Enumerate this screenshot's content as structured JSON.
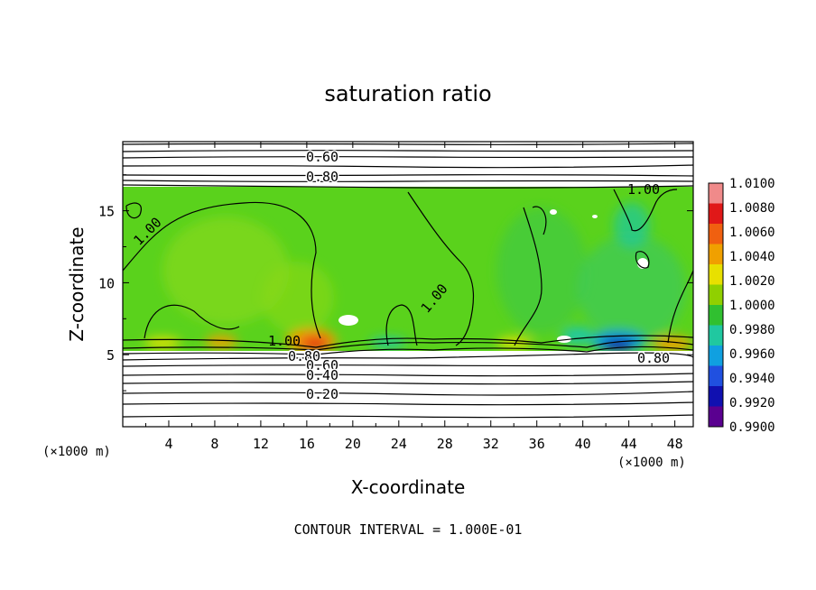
{
  "chart_data": {
    "type": "heatmap",
    "title": "saturation ratio",
    "xlabel": "X-coordinate",
    "ylabel": "Z-coordinate",
    "x_unit_label": "(×1000 m)",
    "z_unit_label": "(×1000 m)",
    "xlim": [
      0,
      49.6
    ],
    "ylim": [
      0,
      19.8
    ],
    "x_ticks": [
      "4",
      "8",
      "12",
      "16",
      "20",
      "24",
      "28",
      "32",
      "36",
      "40",
      "44",
      "48"
    ],
    "y_ticks": [
      "5",
      "10",
      "15"
    ],
    "footer": "CONTOUR INTERVAL = 1.000E-01",
    "colorbar": {
      "labels": [
        "1.0100",
        "1.0080",
        "1.0060",
        "1.0040",
        "1.0020",
        "1.0000",
        "0.9980",
        "0.9960",
        "0.9940",
        "0.9920",
        "0.9900"
      ],
      "min": 0.99,
      "max": 1.01,
      "colors": [
        "#f08a8a",
        "#e01818",
        "#f06010",
        "#f0a000",
        "#e8e000",
        "#90d000",
        "#30c030",
        "#20c8a0",
        "#10a0e0",
        "#2050e0",
        "#1010b0",
        "#5a0090"
      ]
    },
    "contour_labels": [
      {
        "text": "0.60",
        "x": 17.5,
        "z": 18.5
      },
      {
        "text": "0.80",
        "x": 17.5,
        "z": 17.2
      },
      {
        "text": "1.00",
        "x": 45.0,
        "z": 16.5
      },
      {
        "text": "1.00",
        "x": 2.8,
        "z": 13.3
      },
      {
        "text": "1.00",
        "x": 27.5,
        "z": 8.8
      },
      {
        "text": "1.00",
        "x": 14.0,
        "z": 6.1
      },
      {
        "text": "0.80",
        "x": 15.6,
        "z": 4.9
      },
      {
        "text": "0.60",
        "x": 17.3,
        "z": 4.1
      },
      {
        "text": "0.40",
        "x": 17.3,
        "z": 3.5
      },
      {
        "text": "0.20",
        "x": 17.3,
        "z": 2.2
      },
      {
        "text": "0.80",
        "x": 46.0,
        "z": 4.9
      }
    ]
  }
}
